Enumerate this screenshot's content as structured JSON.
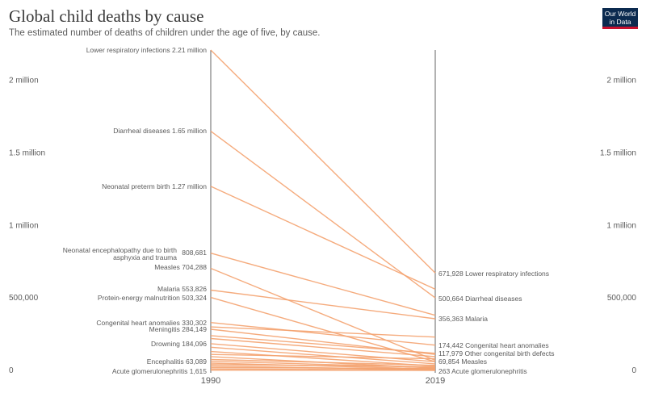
{
  "header": {
    "title": "Global child deaths by cause",
    "subtitle": "The estimated number of deaths of children under the age of five, by cause."
  },
  "logo": {
    "line1": "Our World",
    "line2": "in Data"
  },
  "colors": {
    "line": "#f4a26f",
    "axis": "#666666",
    "text": "#5b5b5b",
    "logo_bg": "#0b2a4f",
    "logo_accent": "#c8102e"
  },
  "chart_data": {
    "type": "line",
    "x": [
      1990,
      2019
    ],
    "y_ticks": [
      {
        "value": 0,
        "label": "0"
      },
      {
        "value": 500000,
        "label": "500,000"
      },
      {
        "value": 1000000,
        "label": "1 million"
      },
      {
        "value": 1500000,
        "label": "1.5 million"
      },
      {
        "value": 2000000,
        "label": "2 million"
      }
    ],
    "ylim": [
      0,
      2210000
    ],
    "series": [
      {
        "name": "Lower respiratory infections",
        "values": [
          2210000,
          671928
        ]
      },
      {
        "name": "Diarrheal diseases",
        "values": [
          1650000,
          500664
        ]
      },
      {
        "name": "Neonatal preterm birth",
        "values": [
          1270000,
          560000
        ]
      },
      {
        "name": "Neonatal encephalopathy due to birth asphyxia and trauma",
        "values": [
          808681,
          380000
        ]
      },
      {
        "name": "Measles",
        "values": [
          704288,
          69854
        ]
      },
      {
        "name": "Malaria",
        "values": [
          553826,
          356363
        ]
      },
      {
        "name": "Protein-energy malnutrition",
        "values": [
          503324,
          60000
        ]
      },
      {
        "name": "Congenital heart anomalies",
        "values": [
          330302,
          174442
        ]
      },
      {
        "name": "Meningitis",
        "values": [
          284149,
          110000
        ]
      },
      {
        "name": "Drowning",
        "values": [
          184096,
          60000
        ]
      },
      {
        "name": "Encephalitis",
        "values": [
          63089,
          20000
        ]
      },
      {
        "name": "Acute glomerulonephritis",
        "values": [
          1615,
          263
        ]
      },
      {
        "name": "Other congenital birth defects",
        "values": [
          240000,
          117979
        ]
      },
      {
        "name": "",
        "values": [
          300000,
          230000
        ]
      },
      {
        "name": "",
        "values": [
          220000,
          95000
        ]
      },
      {
        "name": "",
        "values": [
          160000,
          45000
        ]
      },
      {
        "name": "",
        "values": [
          130000,
          30000
        ]
      },
      {
        "name": "",
        "values": [
          110000,
          80000
        ]
      },
      {
        "name": "",
        "values": [
          95000,
          15000
        ]
      },
      {
        "name": "",
        "values": [
          75000,
          35000
        ]
      },
      {
        "name": "",
        "values": [
          50000,
          10000
        ]
      },
      {
        "name": "",
        "values": [
          40000,
          25000
        ]
      },
      {
        "name": "",
        "values": [
          30000,
          5000
        ]
      },
      {
        "name": "",
        "values": [
          20000,
          12000
        ]
      },
      {
        "name": "",
        "values": [
          10000,
          3000
        ]
      }
    ],
    "left_labels": [
      {
        "series": "Lower respiratory infections",
        "text": "Lower respiratory infections 2.21 million"
      },
      {
        "series": "Diarrheal diseases",
        "text": "Diarrheal diseases 1.65 million"
      },
      {
        "series": "Neonatal preterm birth",
        "text": "Neonatal preterm birth 1.27 million"
      },
      {
        "series": "Neonatal encephalopathy due to birth asphyxia and trauma",
        "text": "Neonatal encephalopathy due to birth",
        "text2": "asphyxia and trauma",
        "value": "808,681"
      },
      {
        "series": "Measles",
        "text": "Measles 704,288"
      },
      {
        "series": "Malaria",
        "text": "Malaria 553,826"
      },
      {
        "series": "Protein-energy malnutrition",
        "text": "Protein-energy malnutrition 503,324"
      },
      {
        "series": "Congenital heart anomalies",
        "text": "Congenital heart anomalies 330,302"
      },
      {
        "series": "Meningitis",
        "text": "Meningitis 284,149"
      },
      {
        "series": "Drowning",
        "text": "Drowning 184,096"
      },
      {
        "series": "Encephalitis",
        "text": "Encephalitis 63,089"
      },
      {
        "series": "Acute glomerulonephritis",
        "text": "Acute glomerulonephritis 1,615"
      }
    ],
    "right_labels": [
      {
        "series": "Lower respiratory infections",
        "text": "671,928 Lower respiratory infections"
      },
      {
        "series": "Diarrheal diseases",
        "text": "500,664 Diarrheal diseases"
      },
      {
        "series": "Malaria",
        "text": "356,363 Malaria"
      },
      {
        "series": "Congenital heart anomalies",
        "text": "174,442 Congenital heart anomalies"
      },
      {
        "series": "Other congenital birth defects",
        "text": "117,979 Other congenital birth defects"
      },
      {
        "series": "Measles",
        "text": "69,854 Measles"
      },
      {
        "series": "Acute glomerulonephritis",
        "text": "263 Acute glomerulonephritis"
      }
    ]
  }
}
